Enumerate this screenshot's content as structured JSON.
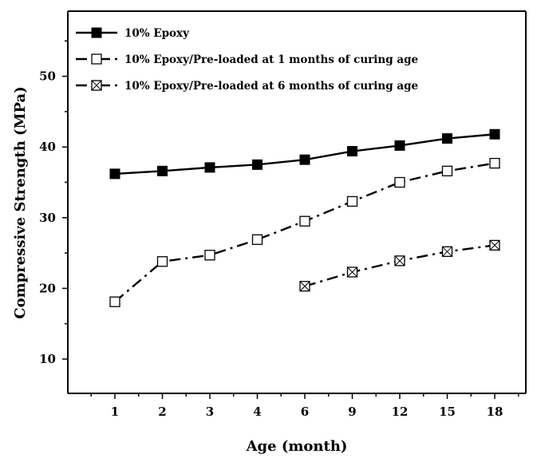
{
  "chart_data": {
    "type": "line",
    "categories": [
      "1",
      "2",
      "3",
      "4",
      "6",
      "9",
      "12",
      "15",
      "18"
    ],
    "xlabel": "Age (month)",
    "ylabel": "Compressive Strength (MPa)",
    "ylim": [
      5,
      58
    ],
    "yticks": [
      10,
      20,
      30,
      40,
      50
    ],
    "grid": false,
    "legend_position": "top-left",
    "series": [
      {
        "name": "10% Epoxy",
        "marker": "filled-square",
        "line_style": "solid",
        "color": "#000000",
        "values": [
          36.2,
          36.6,
          37.1,
          37.5,
          38.2,
          39.4,
          40.2,
          41.2,
          41.8
        ]
      },
      {
        "name": "10% Epoxy/Pre-loaded at 1 months of curing age",
        "marker": "open-square",
        "line_style": "dash-dot",
        "color": "#000000",
        "values": [
          18.1,
          23.8,
          24.7,
          26.9,
          29.5,
          32.3,
          35.0,
          36.6,
          37.7
        ]
      },
      {
        "name": "10% Epoxy/Pre-loaded  at 6 months of curing age",
        "marker": "crossed-square",
        "line_style": "dash-dot",
        "color": "#000000",
        "values": [
          null,
          null,
          null,
          null,
          20.3,
          22.3,
          23.9,
          25.2,
          26.1
        ]
      }
    ]
  }
}
